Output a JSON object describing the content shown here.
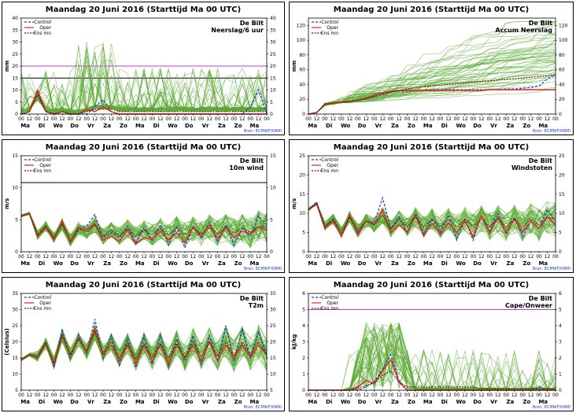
{
  "colors": {
    "control": "#1f3fd0",
    "oper": "#e82418",
    "ensmean": "#6b1408",
    "members": "#58a832",
    "reference": "#c83ad8",
    "source": "#1f3fd0"
  },
  "hour_ticks": [
    "00",
    "12",
    "00",
    "12",
    "00",
    "12",
    "00",
    "12",
    "00",
    "12",
    "00",
    "12",
    "00",
    "12",
    "00",
    "12",
    "00",
    "12",
    "00",
    "12",
    "00",
    "12",
    "00",
    "12",
    "00",
    "12",
    "00",
    "12",
    "00",
    "12",
    "00"
  ],
  "day_ticks": [
    "Ma",
    "Di",
    "Wo",
    "Do",
    "Vr",
    "Za",
    "Zo",
    "Ma",
    "Di",
    "Wo",
    "Do",
    "Vr",
    "Za",
    "Zo",
    "Ma"
  ],
  "legend": [
    "Control",
    "Oper",
    "Ens mn"
  ],
  "source": "Bron: ECMWF/KNMI",
  "chart_data": [
    {
      "type": "line",
      "title": "Maandag 20 Juni 2016     (Starttijd Ma 00 UTC)",
      "location": "De Bilt",
      "parameter": "Neerslag/6 uur",
      "ylabel": "mm",
      "ylim": [
        0,
        40
      ],
      "yticks": [
        0,
        5,
        10,
        15,
        20,
        25,
        30,
        35,
        40
      ],
      "reference_lines": [
        {
          "y": 20,
          "color": "#c83ad8"
        },
        {
          "y": 15,
          "color": "#000000"
        }
      ],
      "x_hours": [
        0,
        12,
        24,
        36,
        48,
        60,
        72,
        84,
        96,
        108,
        120,
        132,
        144,
        156,
        168,
        180,
        192,
        204,
        216,
        228,
        240,
        252,
        264,
        276,
        288,
        300,
        312,
        324,
        336,
        348,
        360
      ],
      "series": [
        {
          "name": "Control",
          "values": [
            0,
            1,
            9,
            1,
            0,
            0,
            0,
            0,
            0,
            3,
            6,
            1,
            0,
            0,
            0,
            0,
            0,
            0,
            0,
            0,
            0,
            0,
            0,
            0,
            0,
            0,
            0,
            0,
            3,
            10,
            0
          ]
        },
        {
          "name": "Oper",
          "values": [
            0,
            1,
            10,
            1,
            0,
            1,
            0,
            0,
            2,
            1,
            3,
            1,
            0,
            0,
            0,
            0,
            0,
            0,
            0,
            0,
            0,
            0,
            0,
            0,
            0,
            0,
            0,
            0,
            0,
            0,
            0
          ]
        },
        {
          "name": "Ens mn",
          "values": [
            0,
            1,
            8,
            1,
            0,
            1,
            0,
            0,
            1,
            2,
            2,
            2,
            1,
            1,
            1,
            1,
            1,
            1,
            1,
            1,
            1,
            1,
            1,
            1,
            1,
            1,
            1,
            1,
            1,
            1,
            1
          ]
        }
      ],
      "members_range": [
        0,
        33
      ]
    },
    {
      "type": "line",
      "title": "Maandag 20 Juni 2016     (Starttijd Ma 00 UTC)",
      "location": "De Bilt",
      "parameter": "Accum Neerslag",
      "ylabel": "mm",
      "ylim": [
        0,
        130
      ],
      "yticks": [
        0,
        20,
        40,
        60,
        80,
        100,
        120
      ],
      "reference_lines": [],
      "x_hours": [
        0,
        12,
        24,
        36,
        48,
        60,
        72,
        84,
        96,
        108,
        120,
        132,
        144,
        156,
        168,
        180,
        192,
        204,
        216,
        228,
        240,
        252,
        264,
        276,
        288,
        300,
        312,
        324,
        336,
        348,
        360
      ],
      "series": [
        {
          "name": "Control",
          "values": [
            0,
            2,
            14,
            15,
            16,
            17,
            19,
            21,
            24,
            27,
            30,
            31,
            31,
            32,
            32,
            33,
            33,
            33,
            33,
            33,
            33,
            33,
            33,
            33,
            34,
            34,
            35,
            36,
            38,
            48,
            53
          ]
        },
        {
          "name": "Oper",
          "values": [
            0,
            2,
            13,
            15,
            16,
            17,
            19,
            22,
            26,
            29,
            31,
            32,
            32,
            32,
            32,
            32,
            32,
            32,
            32,
            32,
            32,
            32,
            33,
            33,
            33,
            33,
            33,
            33,
            33,
            33,
            33
          ]
        },
        {
          "name": "Ens mn",
          "values": [
            0,
            2,
            13,
            15,
            16,
            17,
            19,
            21,
            24,
            27,
            30,
            32,
            34,
            36,
            37,
            38,
            39,
            40,
            41,
            42,
            43,
            44,
            45,
            46,
            47,
            48,
            49,
            50,
            51,
            52,
            53
          ]
        }
      ],
      "members_range": [
        0,
        125
      ]
    },
    {
      "type": "line",
      "title": "Maandag 20 Juni 2016     (Starttijd Ma 00 UTC)",
      "location": "De Bilt",
      "parameter": "10m wind",
      "ylabel": "m/s",
      "ylim": [
        0,
        15
      ],
      "yticks": [
        0,
        5,
        10,
        15
      ],
      "reference_lines": [
        {
          "y": 10.8,
          "color": "#000000"
        }
      ],
      "x_hours": [
        0,
        12,
        24,
        36,
        48,
        60,
        72,
        84,
        96,
        108,
        120,
        132,
        144,
        156,
        168,
        180,
        192,
        204,
        216,
        228,
        240,
        252,
        264,
        276,
        288,
        300,
        312,
        324,
        336,
        348,
        360
      ],
      "series": [
        {
          "name": "Control",
          "values": [
            5.6,
            6,
            2.6,
            4,
            2,
            4.5,
            1.5,
            3.5,
            4,
            5.8,
            2.2,
            3,
            2.2,
            4,
            1.4,
            3.8,
            1.8,
            4.2,
            1,
            3.8,
            0.6,
            4,
            2,
            4.6,
            1.5,
            4.2,
            1,
            3.6,
            2.4,
            5.6,
            4.2
          ]
        },
        {
          "name": "Oper",
          "values": [
            5.6,
            6,
            2.4,
            3.8,
            1.8,
            4.8,
            1.4,
            3.8,
            3.4,
            4.4,
            1.8,
            2.4,
            1.6,
            3.4,
            1.2,
            2.2,
            2,
            3.2,
            1.8,
            3,
            1.4,
            3.8,
            2.4,
            4.2,
            2,
            3.8,
            2.2,
            3.2,
            2.8,
            3.8,
            3.4
          ]
        },
        {
          "name": "Ens mn",
          "values": [
            5.6,
            6,
            2.6,
            4,
            2.2,
            4.3,
            1.8,
            3.6,
            3.1,
            4.2,
            2.4,
            3.4,
            2.5,
            3.6,
            2.4,
            3.4,
            2.6,
            3.6,
            2.6,
            3.7,
            2.7,
            3.6,
            2.8,
            3.8,
            2.8,
            3.8,
            2.9,
            3.8,
            3,
            4,
            3.8
          ]
        }
      ],
      "members_range": [
        0,
        9
      ]
    },
    {
      "type": "line",
      "title": "Maandag 20 Juni 2016     (Starttijd Ma 00 UTC)",
      "location": "De Bilt",
      "parameter": "Windstoten",
      "ylabel": "m/s",
      "ylim": [
        0,
        25
      ],
      "yticks": [
        0,
        5,
        10,
        15,
        20,
        25
      ],
      "reference_lines": [],
      "x_hours": [
        0,
        12,
        24,
        36,
        48,
        60,
        72,
        84,
        96,
        108,
        120,
        132,
        144,
        156,
        168,
        180,
        192,
        204,
        216,
        228,
        240,
        252,
        264,
        276,
        288,
        300,
        312,
        324,
        336,
        348,
        360
      ],
      "series": [
        {
          "name": "Control",
          "values": [
            11,
            13,
            6.5,
            8.5,
            4,
            9,
            5,
            8,
            7.5,
            14,
            6,
            9,
            5,
            10,
            4.5,
            8.5,
            5,
            9.5,
            3,
            8.5,
            3,
            9.5,
            5.5,
            10,
            4.5,
            9,
            4,
            8,
            6,
            11,
            8
          ]
        },
        {
          "name": "Oper",
          "values": [
            11,
            12.5,
            6,
            8,
            4,
            9.5,
            4.5,
            8,
            7,
            11,
            5,
            7,
            5,
            9.5,
            4,
            7.5,
            4.5,
            7.5,
            5,
            8,
            4,
            9.5,
            5,
            9,
            5,
            8.5,
            5,
            8,
            6,
            9,
            7
          ]
        },
        {
          "name": "Ens mn",
          "values": [
            11,
            12.5,
            6.5,
            8.5,
            5,
            9,
            5.5,
            8,
            7,
            9.5,
            6,
            8.5,
            6.5,
            9,
            6.5,
            8.5,
            6.5,
            8.5,
            6.5,
            8.5,
            6.5,
            8.5,
            6.5,
            8.5,
            6.5,
            8.5,
            6.5,
            8.5,
            7,
            9,
            8.5
          ]
        }
      ],
      "members_range": [
        2,
        18
      ]
    },
    {
      "type": "line",
      "title": "Maandag 20 Juni 2016     (Starttijd Ma 00 UTC)",
      "location": "De Bilt",
      "parameter": "T2m",
      "ylabel": "(Celsius)",
      "ylim": [
        5,
        35
      ],
      "yticks": [
        5,
        10,
        15,
        20,
        25,
        30,
        35
      ],
      "reference_lines": [],
      "x_hours": [
        0,
        12,
        24,
        36,
        48,
        60,
        72,
        84,
        96,
        108,
        120,
        132,
        144,
        156,
        168,
        180,
        192,
        204,
        216,
        228,
        240,
        252,
        264,
        276,
        288,
        300,
        312,
        324,
        336,
        348,
        360
      ],
      "series": [
        {
          "name": "Control",
          "values": [
            14.5,
            16,
            15.5,
            20,
            12,
            24,
            15,
            22,
            16.5,
            27,
            15,
            22,
            13,
            21,
            12,
            22,
            13,
            22,
            12.5,
            21,
            14,
            22,
            13,
            22,
            14,
            25,
            14,
            24,
            15,
            23,
            16
          ]
        },
        {
          "name": "Oper",
          "values": [
            14.5,
            16,
            15,
            19.5,
            13,
            22,
            16,
            21,
            17,
            24,
            16,
            19,
            14,
            19,
            13,
            19,
            14,
            19,
            13,
            19,
            15,
            19,
            14,
            20,
            14,
            19,
            15,
            19,
            15,
            19,
            16
          ]
        },
        {
          "name": "Ens mn",
          "values": [
            14.5,
            16,
            15.5,
            19.5,
            13.5,
            22,
            16,
            21,
            17,
            23,
            16.5,
            20,
            15,
            19.5,
            14.5,
            19.5,
            15,
            19.5,
            15,
            19.5,
            15,
            20,
            15.5,
            20,
            15.5,
            20,
            15.5,
            20,
            16,
            20,
            16
          ]
        }
      ],
      "members_range": [
        10,
        30
      ]
    },
    {
      "type": "line",
      "title": "Maandag 20 Juni 2016     (Starttijd Ma 00 UTC)",
      "location": "De Bilt",
      "parameter": "Cape/Onweer",
      "ylabel": "kJ/kg",
      "ylim": [
        0,
        6
      ],
      "yticks": [
        0,
        1,
        2,
        3,
        4,
        5,
        6
      ],
      "reference_lines": [
        {
          "y": 5,
          "color": "#c83ad8"
        }
      ],
      "x_hours": [
        0,
        12,
        24,
        36,
        48,
        60,
        72,
        84,
        96,
        108,
        120,
        132,
        144,
        156,
        168,
        180,
        192,
        204,
        216,
        228,
        240,
        252,
        264,
        276,
        288,
        300,
        312,
        324,
        336,
        348,
        360
      ],
      "series": [
        {
          "name": "Control",
          "values": [
            0,
            0,
            0,
            0,
            0,
            0,
            0,
            0.2,
            0.5,
            1.3,
            2.2,
            0.6,
            0,
            0,
            0,
            0,
            0,
            0,
            0,
            0,
            0,
            0,
            0,
            0,
            0,
            0,
            0,
            0,
            0.2,
            0,
            0
          ]
        },
        {
          "name": "Oper",
          "values": [
            0,
            0,
            0,
            0,
            0,
            0,
            0.2,
            0.6,
            0.4,
            1.2,
            1.9,
            0.5,
            0,
            0,
            0,
            0,
            0,
            0,
            0,
            0,
            0,
            0,
            0,
            0,
            0,
            0,
            0,
            0,
            0,
            0,
            0
          ]
        },
        {
          "name": "Ens mn",
          "values": [
            0,
            0,
            0,
            0,
            0,
            0,
            0.1,
            0.3,
            0.5,
            0.9,
            1.2,
            0.5,
            0.2,
            0.2,
            0.2,
            0.2,
            0.2,
            0.2,
            0.2,
            0.2,
            0.2,
            0.1,
            0.1,
            0.1,
            0.1,
            0.1,
            0.1,
            0.1,
            0.1,
            0.1,
            0.1
          ]
        }
      ],
      "members_range": [
        0,
        4.2
      ]
    }
  ]
}
